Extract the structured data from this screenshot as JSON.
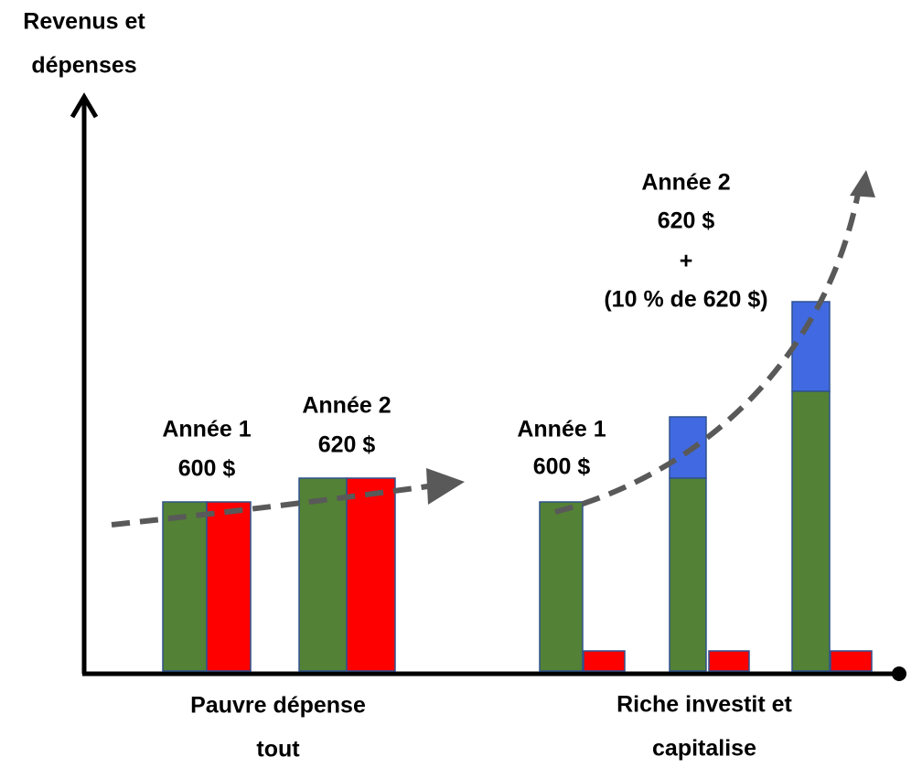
{
  "axis_label": {
    "lines": [
      "Revenus et",
      "dépenses"
    ]
  },
  "poor": {
    "label": {
      "lines": [
        "Pauvre dépense",
        "tout"
      ]
    },
    "year1": {
      "lines": [
        "Année 1",
        "600 $"
      ]
    },
    "year2": {
      "lines": [
        "Année 2",
        "620 $"
      ]
    }
  },
  "rich": {
    "label": {
      "lines": [
        "Riche investit et",
        "capitalise"
      ]
    },
    "year1": {
      "lines": [
        "Année 1",
        "600 $"
      ]
    },
    "year2": {
      "lines": [
        "Année 2",
        "620 $",
        "+",
        "(10 % de 620 $)"
      ]
    }
  }
}
